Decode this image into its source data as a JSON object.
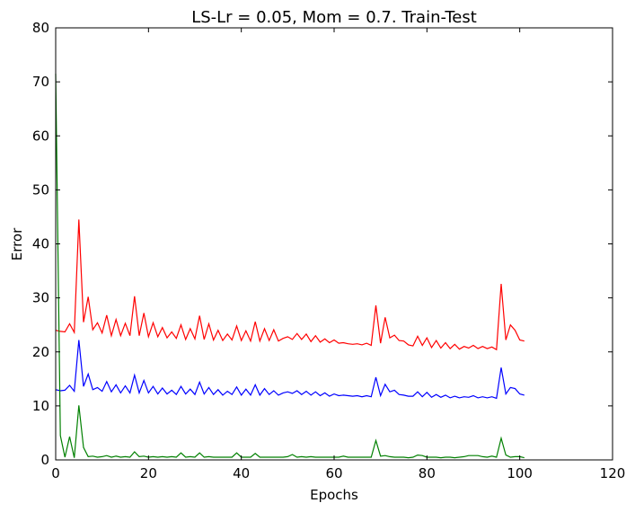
{
  "chart_data": {
    "type": "line",
    "title": "LS-Lr = 0.05, Mom = 0.7. Train-Test",
    "xlabel": "Epochs",
    "ylabel": "Error",
    "xlim": [
      0,
      120
    ],
    "ylim": [
      0,
      80
    ],
    "xticks": [
      "0",
      "20",
      "40",
      "60",
      "80",
      "100",
      "120"
    ],
    "yticks": [
      "0",
      "10",
      "20",
      "30",
      "40",
      "50",
      "60",
      "70",
      "80"
    ],
    "grid": false,
    "series": [
      {
        "color": "#ff0000",
        "x": [
          0,
          1,
          2,
          3,
          4,
          5,
          6,
          7,
          8,
          9,
          10,
          11,
          12,
          13,
          14,
          15,
          16,
          17,
          18,
          19,
          20,
          21,
          22,
          23,
          24,
          25,
          26,
          27,
          28,
          29,
          30,
          31,
          32,
          33,
          34,
          35,
          36,
          37,
          38,
          39,
          40,
          41,
          42,
          43,
          44,
          45,
          46,
          47,
          48,
          49,
          50,
          51,
          52,
          53,
          54,
          55,
          56,
          57,
          58,
          59,
          60,
          61,
          62,
          63,
          64,
          65,
          66,
          67,
          68,
          69,
          70,
          71,
          72,
          73,
          74,
          75,
          76,
          77,
          78,
          79,
          80,
          81,
          82,
          83,
          84,
          85,
          86,
          87,
          88,
          89,
          90,
          91,
          92,
          93,
          94,
          95,
          96,
          97,
          98,
          99,
          100,
          101
        ],
        "y": [
          24,
          23.8,
          23.7,
          25.2,
          23.6,
          44.5,
          25.5,
          30.2,
          24.1,
          25.4,
          23.5,
          26.8,
          23,
          26,
          23,
          25.3,
          23,
          30.3,
          23,
          27.2,
          22.8,
          25.4,
          22.8,
          24.5,
          22.6,
          23.7,
          22.5,
          25,
          22.3,
          24.3,
          22.4,
          26.7,
          22.3,
          25.2,
          22.2,
          24,
          22.1,
          23.3,
          22.2,
          24.8,
          22.1,
          23.9,
          22,
          25.6,
          22,
          24.3,
          22.1,
          24.1,
          22,
          22.5,
          22.8,
          22.3,
          23.4,
          22.3,
          23.3,
          21.9,
          23,
          21.8,
          22.4,
          21.7,
          22.2,
          21.6,
          21.7,
          21.5,
          21.4,
          21.5,
          21.3,
          21.6,
          21.2,
          28.6,
          21.6,
          26.4,
          22.6,
          23.1,
          22.1,
          22,
          21.3,
          21.1,
          22.9,
          21.2,
          22.6,
          20.8,
          22.1,
          20.7,
          21.7,
          20.6,
          21.4,
          20.5,
          21,
          20.7,
          21.2,
          20.6,
          21,
          20.6,
          20.9,
          20.4,
          32.6,
          22.2,
          25,
          24,
          22.2,
          22
        ]
      },
      {
        "color": "#0000ff",
        "x": [
          0,
          1,
          2,
          3,
          4,
          5,
          6,
          7,
          8,
          9,
          10,
          11,
          12,
          13,
          14,
          15,
          16,
          17,
          18,
          19,
          20,
          21,
          22,
          23,
          24,
          25,
          26,
          27,
          28,
          29,
          30,
          31,
          32,
          33,
          34,
          35,
          36,
          37,
          38,
          39,
          40,
          41,
          42,
          43,
          44,
          45,
          46,
          47,
          48,
          49,
          50,
          51,
          52,
          53,
          54,
          55,
          56,
          57,
          58,
          59,
          60,
          61,
          62,
          63,
          64,
          65,
          66,
          67,
          68,
          69,
          70,
          71,
          72,
          73,
          74,
          75,
          76,
          77,
          78,
          79,
          80,
          81,
          82,
          83,
          84,
          85,
          86,
          87,
          88,
          89,
          90,
          91,
          92,
          93,
          94,
          95,
          96,
          97,
          98,
          99,
          100,
          101
        ],
        "y": [
          13,
          12.8,
          12.9,
          13.8,
          12.7,
          22.2,
          13.6,
          15.9,
          13,
          13.4,
          12.7,
          14.5,
          12.6,
          13.9,
          12.4,
          13.7,
          12.4,
          15.7,
          12.4,
          14.7,
          12.4,
          13.6,
          12.2,
          13.3,
          12.2,
          12.9,
          12.1,
          13.6,
          12.2,
          13.1,
          12.1,
          14.4,
          12.2,
          13.4,
          12.1,
          13,
          12,
          12.7,
          12.1,
          13.5,
          12,
          13.1,
          12,
          13.9,
          12,
          13.2,
          12.1,
          12.8,
          12,
          12.4,
          12.6,
          12.3,
          12.8,
          12.1,
          12.7,
          12,
          12.6,
          11.9,
          12.4,
          11.8,
          12.2,
          11.9,
          12,
          11.9,
          11.8,
          11.9,
          11.7,
          11.9,
          11.7,
          15.3,
          11.9,
          14,
          12.6,
          12.9,
          12.1,
          12,
          11.8,
          11.8,
          12.6,
          11.7,
          12.5,
          11.6,
          12.1,
          11.6,
          12,
          11.5,
          11.8,
          11.5,
          11.7,
          11.6,
          11.9,
          11.5,
          11.7,
          11.5,
          11.7,
          11.4,
          17.1,
          12.2,
          13.4,
          13.2,
          12.2,
          12
        ]
      },
      {
        "color": "#008000",
        "x": [
          0,
          1,
          2,
          3,
          4,
          5,
          6,
          7,
          8,
          9,
          10,
          11,
          12,
          13,
          14,
          15,
          16,
          17,
          18,
          19,
          20,
          21,
          22,
          23,
          24,
          25,
          26,
          27,
          28,
          29,
          30,
          31,
          32,
          33,
          34,
          35,
          36,
          37,
          38,
          39,
          40,
          41,
          42,
          43,
          44,
          45,
          46,
          47,
          48,
          49,
          50,
          51,
          52,
          53,
          54,
          55,
          56,
          57,
          58,
          59,
          60,
          61,
          62,
          63,
          64,
          65,
          66,
          67,
          68,
          69,
          70,
          71,
          72,
          73,
          74,
          75,
          76,
          77,
          78,
          79,
          80,
          81,
          82,
          83,
          84,
          85,
          86,
          87,
          88,
          89,
          90,
          91,
          92,
          93,
          94,
          95,
          96,
          97,
          98,
          99,
          100,
          101
        ],
        "y": [
          71.5,
          4.5,
          0.5,
          4.3,
          0.4,
          10.1,
          2.3,
          0.6,
          0.7,
          0.5,
          0.6,
          0.8,
          0.5,
          0.7,
          0.5,
          0.6,
          0.5,
          1.5,
          0.6,
          0.7,
          0.5,
          0.6,
          0.5,
          0.6,
          0.5,
          0.6,
          0.5,
          1.3,
          0.5,
          0.6,
          0.5,
          1.3,
          0.5,
          0.6,
          0.5,
          0.5,
          0.5,
          0.5,
          0.5,
          1.3,
          0.5,
          0.5,
          0.5,
          1.2,
          0.5,
          0.5,
          0.5,
          0.5,
          0.5,
          0.5,
          0.6,
          1,
          0.5,
          0.6,
          0.5,
          0.6,
          0.5,
          0.5,
          0.5,
          0.5,
          0.5,
          0.5,
          0.7,
          0.5,
          0.5,
          0.5,
          0.5,
          0.5,
          0.5,
          3.6,
          0.7,
          0.8,
          0.6,
          0.5,
          0.5,
          0.5,
          0.4,
          0.5,
          0.9,
          0.8,
          0.5,
          0.5,
          0.5,
          0.4,
          0.5,
          0.5,
          0.4,
          0.5,
          0.6,
          0.8,
          0.8,
          0.8,
          0.6,
          0.5,
          0.7,
          0.5,
          4,
          0.9,
          0.5,
          0.6,
          0.6,
          0.4
        ]
      }
    ]
  }
}
